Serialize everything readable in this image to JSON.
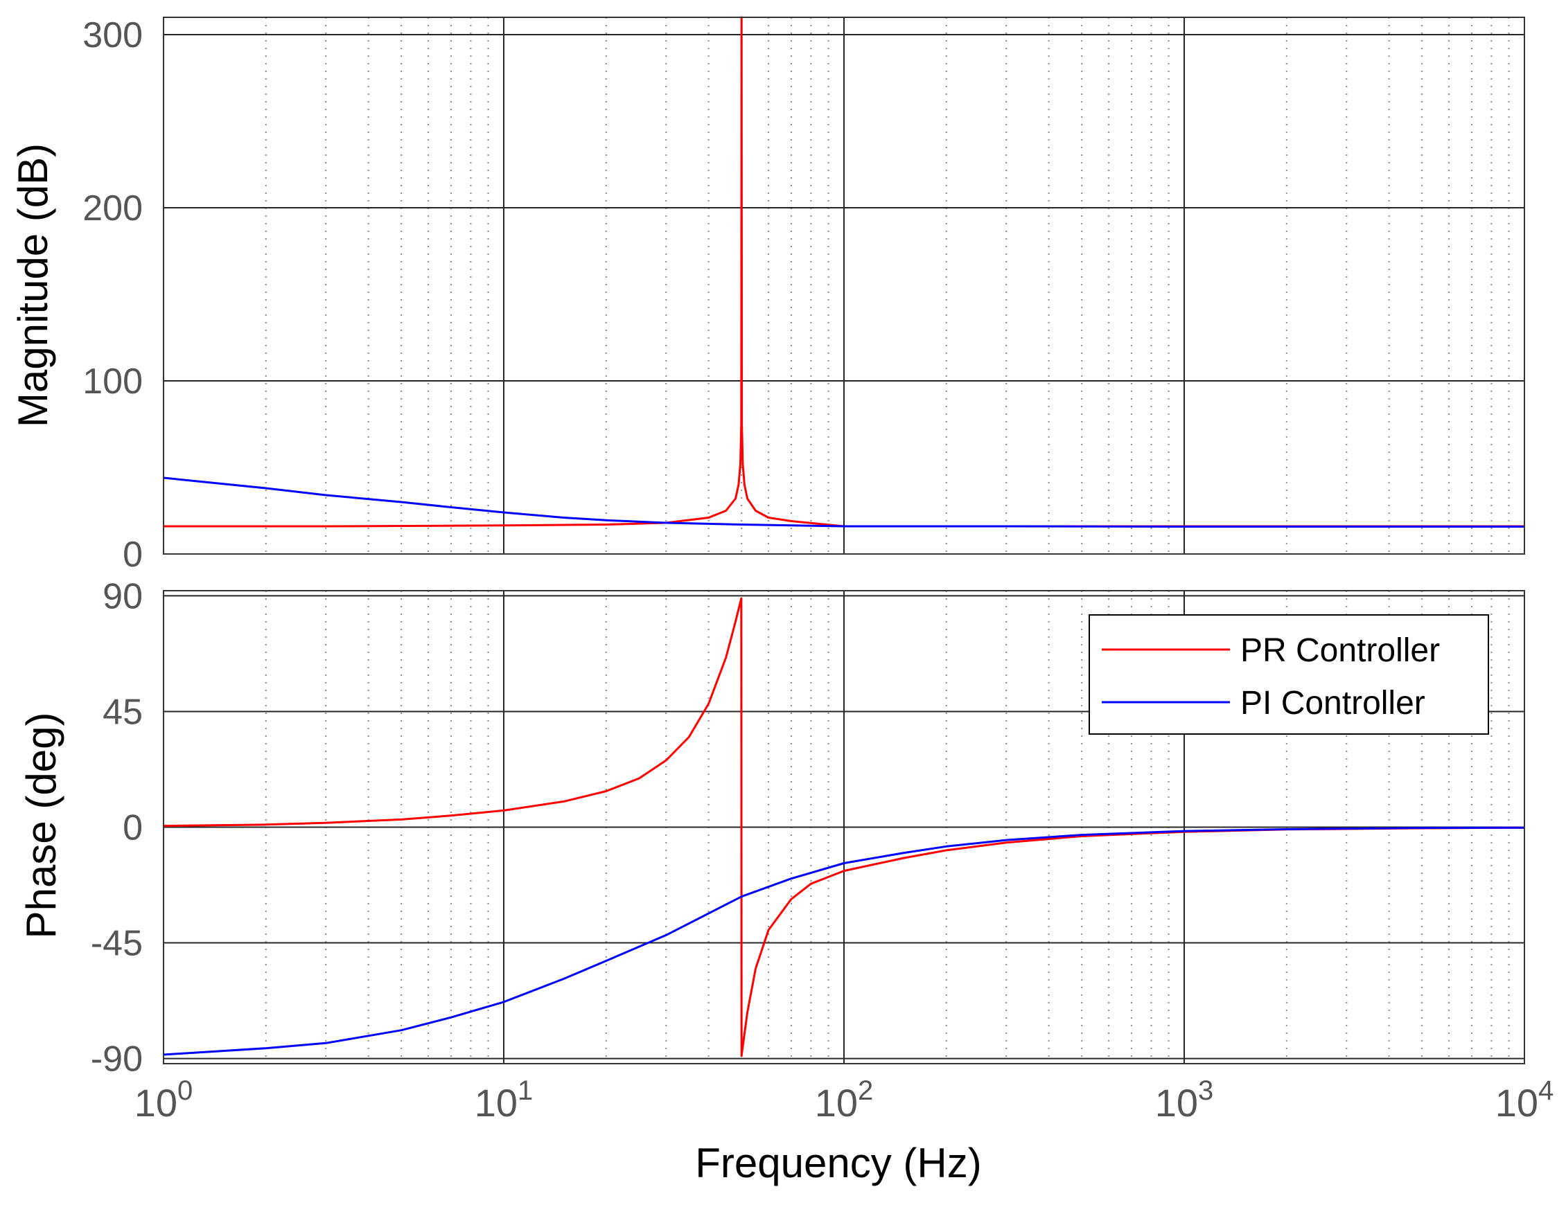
{
  "chart_data": [
    {
      "type": "line",
      "panel": "magnitude",
      "xscale": "log",
      "xlim": [
        1,
        10000
      ],
      "ylim": [
        0,
        310
      ],
      "ylabel": "Magnitude (dB)",
      "ytick_values": [
        0,
        100,
        200,
        300
      ],
      "ytick_labels": [
        "0",
        "100",
        "200",
        "300"
      ],
      "grid": "major solid, minor dotted",
      "series": [
        {
          "name": "PR Controller",
          "color": "#ff0000",
          "x": [
            1,
            3,
            10,
            20,
            30,
            40,
            45,
            48,
            49,
            49.6,
            49.9,
            50,
            50.1,
            50.4,
            51,
            52,
            55,
            60,
            70,
            100,
            1000,
            10000
          ],
          "y": [
            16,
            16,
            16.5,
            17,
            18,
            21,
            25,
            32,
            40,
            52,
            75,
            310,
            75,
            52,
            40,
            32,
            25,
            21,
            19,
            16,
            16,
            16
          ]
        },
        {
          "name": "PI Controller",
          "color": "#0000ff",
          "x": [
            1,
            2,
            3,
            5,
            7,
            10,
            15,
            20,
            30,
            50,
            100,
            300,
            1000,
            10000
          ],
          "y": [
            44,
            38,
            34,
            30,
            27,
            24,
            21,
            19.5,
            18,
            17,
            16,
            16,
            15.8,
            15.8
          ]
        }
      ]
    },
    {
      "type": "line",
      "panel": "phase",
      "xscale": "log",
      "xlim": [
        1,
        10000
      ],
      "ylim": [
        -92,
        92
      ],
      "xlabel": "Frequency  (Hz)",
      "ylabel": "Phase (deg)",
      "ytick_values": [
        -90,
        -45,
        0,
        45,
        90
      ],
      "ytick_labels": [
        "-90",
        "-45",
        "0",
        "45",
        "90"
      ],
      "xtick_values": [
        1,
        10,
        100,
        1000,
        10000
      ],
      "xtick_exponents": [
        "0",
        "1",
        "2",
        "3",
        "4"
      ],
      "xtick_base": "10",
      "legend": [
        "PR Controller",
        "PI Controller"
      ],
      "legend_position": "top-right",
      "grid": "major solid, minor dotted",
      "series": [
        {
          "name": "PR Controller",
          "color": "#ff0000",
          "x": [
            1,
            2,
            3,
            5,
            7,
            10,
            15,
            20,
            25,
            30,
            35,
            40,
            45,
            48,
            49.9,
            50,
            50.1,
            52,
            55,
            60,
            70,
            80,
            100,
            150,
            200,
            300,
            500,
            1000,
            2000,
            5000,
            10000
          ],
          "y": [
            0.5,
            1,
            1.7,
            3,
            4.5,
            6.5,
            10,
            14,
            19,
            26,
            35,
            48,
            66,
            80,
            89,
            -89,
            -88,
            -72,
            -55,
            -40,
            -28,
            -22,
            -17,
            -12,
            -9,
            -6,
            -3.5,
            -1.8,
            -0.9,
            -0.4,
            -0.2
          ]
        },
        {
          "name": "PI Controller",
          "color": "#0000ff",
          "x": [
            1,
            2,
            3,
            5,
            7,
            10,
            15,
            20,
            30,
            50,
            70,
            100,
            150,
            200,
            300,
            500,
            1000,
            2000,
            5000,
            10000
          ],
          "y": [
            -88.5,
            -86,
            -84,
            -79,
            -74,
            -68,
            -59,
            -52,
            -42,
            -27,
            -20,
            -14,
            -10,
            -7.5,
            -5,
            -3,
            -1.5,
            -0.8,
            -0.3,
            -0.2
          ]
        }
      ]
    }
  ]
}
